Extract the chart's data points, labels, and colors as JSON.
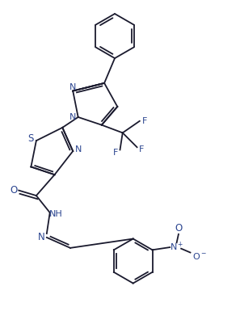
{
  "bg_color": "#ffffff",
  "bond_color": "#1a1a2e",
  "label_color": "#2b4590",
  "fig_width": 2.97,
  "fig_height": 4.02,
  "dpi": 100,
  "xlim": [
    0,
    9
  ],
  "ylim": [
    0,
    12
  ]
}
